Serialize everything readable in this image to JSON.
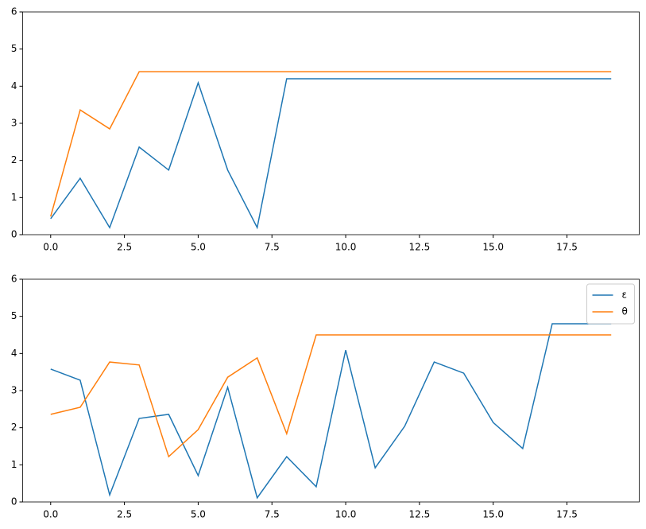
{
  "chart_data": [
    {
      "type": "line",
      "x": [
        0,
        1,
        2,
        3,
        4,
        5,
        6,
        7,
        8,
        9,
        10,
        11,
        12,
        13,
        14,
        15,
        16,
        17,
        18,
        19
      ],
      "series": [
        {
          "color": "#1f77b4",
          "values": [
            0.43,
            1.52,
            0.19,
            2.36,
            1.74,
            4.09,
            1.74,
            0.19,
            4.2,
            4.2,
            4.2,
            4.2,
            4.2,
            4.2,
            4.2,
            4.2,
            4.2,
            4.2,
            4.2,
            4.2
          ]
        },
        {
          "color": "#ff7f0e",
          "values": [
            0.49,
            3.36,
            2.85,
            4.39,
            4.39,
            4.39,
            4.39,
            4.39,
            4.39,
            4.39,
            4.39,
            4.39,
            4.39,
            4.39,
            4.39,
            4.39,
            4.39,
            4.39,
            4.39,
            4.39
          ]
        }
      ],
      "xlim": [
        -0.95,
        19.95
      ],
      "xticks": [
        {
          "value": 0,
          "label": "0.0"
        },
        2.5,
        {
          "value": 5,
          "label": "5.0"
        },
        7.5,
        {
          "value": 10,
          "label": "10.0"
        },
        12.5,
        {
          "value": 15,
          "label": "15.0"
        },
        17.5
      ],
      "ylim": [
        0,
        6
      ],
      "yticks": [
        0,
        1,
        2,
        3,
        4,
        5,
        6
      ]
    },
    {
      "type": "line",
      "x": [
        0,
        1,
        2,
        3,
        4,
        5,
        6,
        7,
        8,
        9,
        10,
        11,
        12,
        13,
        14,
        15,
        16,
        17,
        18,
        19
      ],
      "series": [
        {
          "name": "ε",
          "color": "#1f77b4",
          "values": [
            3.58,
            3.28,
            0.19,
            2.25,
            2.36,
            0.71,
            3.09,
            0.11,
            1.22,
            0.41,
            4.09,
            0.92,
            2.04,
            3.77,
            3.47,
            2.14,
            1.44,
            4.8,
            4.8,
            4.8
          ]
        },
        {
          "name": "θ",
          "color": "#ff7f0e",
          "values": [
            2.36,
            2.55,
            3.77,
            3.69,
            1.22,
            1.95,
            3.36,
            3.88,
            1.84,
            4.5,
            4.5,
            4.5,
            4.5,
            4.5,
            4.5,
            4.5,
            4.5,
            4.5,
            4.5,
            4.5
          ]
        }
      ],
      "xlim": [
        -0.95,
        19.95
      ],
      "xticks": [
        {
          "value": 0,
          "label": "0.0"
        },
        2.5,
        {
          "value": 5,
          "label": "5.0"
        },
        7.5,
        {
          "value": 10,
          "label": "10.0"
        },
        12.5,
        {
          "value": 15,
          "label": "15.0"
        },
        17.5
      ],
      "ylim": [
        0,
        6
      ],
      "yticks": [
        0,
        1,
        2,
        3,
        4,
        5,
        6
      ],
      "legend": "upper right"
    }
  ]
}
